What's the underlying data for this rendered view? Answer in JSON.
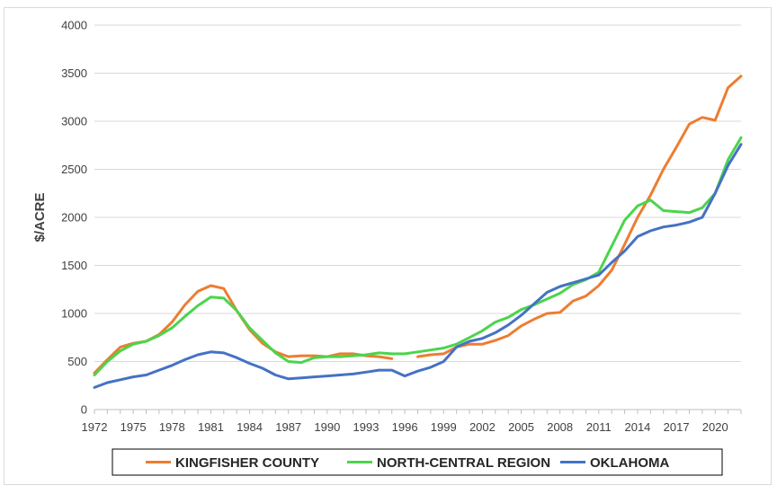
{
  "chart_data": {
    "type": "line",
    "title": "",
    "xlabel": "",
    "ylabel": "$/ACRE",
    "ylim": [
      0,
      4000
    ],
    "yticks": [
      0,
      500,
      1000,
      1500,
      2000,
      2500,
      3000,
      3500,
      4000
    ],
    "xlim": [
      1972,
      2022
    ],
    "xticks": [
      1972,
      1975,
      1978,
      1981,
      1984,
      1987,
      1990,
      1993,
      1996,
      1999,
      2002,
      2005,
      2008,
      2011,
      2014,
      2017,
      2020
    ],
    "grid": true,
    "legend_position": "bottom",
    "series": [
      {
        "name": "KINGFISHER COUNTY",
        "color": "#ED7D31",
        "x": [
          1972,
          1973,
          1974,
          1975,
          1976,
          1977,
          1978,
          1979,
          1980,
          1981,
          1982,
          1983,
          1984,
          1985,
          1986,
          1987,
          1988,
          1989,
          1990,
          1991,
          1992,
          1993,
          1994,
          1995,
          1997,
          1998,
          1999,
          2000,
          2001,
          2002,
          2003,
          2004,
          2005,
          2006,
          2007,
          2008,
          2009,
          2010,
          2011,
          2012,
          2013,
          2014,
          2015,
          2016,
          2017,
          2018,
          2019,
          2020,
          2021,
          2022
        ],
        "values": [
          380,
          520,
          650,
          690,
          710,
          780,
          910,
          1090,
          1230,
          1290,
          1260,
          1030,
          830,
          690,
          600,
          550,
          560,
          560,
          550,
          580,
          580,
          560,
          550,
          530,
          550,
          570,
          580,
          650,
          680,
          680,
          720,
          770,
          870,
          940,
          1000,
          1010,
          1130,
          1180,
          1290,
          1450,
          1720,
          2000,
          2230,
          2500,
          2730,
          2970,
          3040,
          3010,
          3350,
          3470
        ]
      },
      {
        "name": "NORTH-CENTRAL REGION",
        "color": "#4CD44C",
        "x": [
          1972,
          1973,
          1974,
          1975,
          1976,
          1977,
          1978,
          1979,
          1980,
          1981,
          1982,
          1983,
          1984,
          1985,
          1986,
          1987,
          1988,
          1989,
          1990,
          1991,
          1992,
          1993,
          1994,
          1995,
          1996,
          1997,
          1998,
          1999,
          2000,
          2001,
          2002,
          2003,
          2004,
          2005,
          2006,
          2007,
          2008,
          2009,
          2010,
          2011,
          2012,
          2013,
          2014,
          2015,
          2016,
          2017,
          2018,
          2019,
          2020,
          2021,
          2022
        ],
        "values": [
          360,
          500,
          610,
          680,
          710,
          770,
          850,
          970,
          1080,
          1170,
          1160,
          1030,
          850,
          720,
          590,
          500,
          490,
          540,
          550,
          550,
          560,
          570,
          590,
          580,
          580,
          600,
          620,
          640,
          680,
          750,
          820,
          910,
          960,
          1040,
          1090,
          1150,
          1210,
          1300,
          1350,
          1430,
          1700,
          1970,
          2120,
          2180,
          2070,
          2060,
          2050,
          2100,
          2250,
          2600,
          2830
        ]
      },
      {
        "name": "OKLAHOMA",
        "color": "#4472C4",
        "x": [
          1972,
          1973,
          1974,
          1975,
          1976,
          1977,
          1978,
          1979,
          1980,
          1981,
          1982,
          1983,
          1984,
          1985,
          1986,
          1987,
          1988,
          1989,
          1990,
          1991,
          1992,
          1993,
          1994,
          1995,
          1996,
          1997,
          1998,
          1999,
          2000,
          2001,
          2002,
          2003,
          2004,
          2005,
          2006,
          2007,
          2008,
          2009,
          2010,
          2011,
          2012,
          2013,
          2014,
          2015,
          2016,
          2017,
          2018,
          2019,
          2020,
          2021,
          2022
        ],
        "values": [
          230,
          280,
          310,
          340,
          360,
          410,
          460,
          520,
          570,
          600,
          590,
          540,
          480,
          430,
          360,
          320,
          330,
          340,
          350,
          360,
          370,
          390,
          410,
          410,
          350,
          400,
          440,
          500,
          650,
          710,
          740,
          800,
          880,
          980,
          1100,
          1220,
          1280,
          1320,
          1360,
          1400,
          1530,
          1650,
          1800,
          1860,
          1900,
          1920,
          1950,
          2000,
          2250,
          2540,
          2760
        ]
      }
    ]
  }
}
